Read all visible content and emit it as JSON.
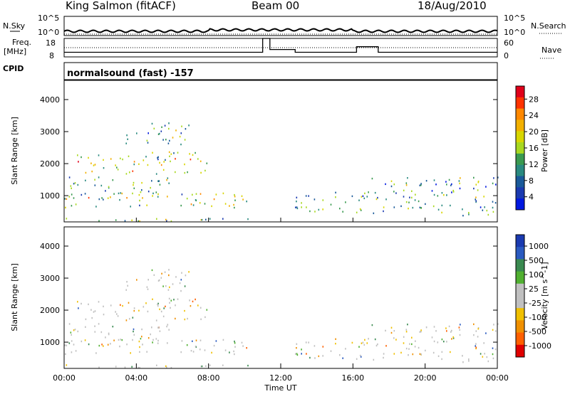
{
  "header": {
    "station": "King Salmon (fitACF)",
    "beam": "Beam 00",
    "date": "18/Aug/2010",
    "program": "normalsound (fast) -157"
  },
  "panels": {
    "nsky_label": "N.Sky",
    "nsearch_label": "N.Search",
    "noise_ticks": [
      "10^5",
      "10^0"
    ],
    "freq_label_1": "Freq.",
    "freq_label_2": "[MHz]",
    "freq_ticks": [
      "18",
      "8"
    ],
    "nave_label": "Nave",
    "nave_ticks": [
      "60",
      "0"
    ],
    "cpid_label": "CPID"
  },
  "power": {
    "ylabel": "Slant Range [km]",
    "cbar_label": "Power [dB]",
    "cbar_ticks": [
      "28",
      "24",
      "20",
      "16",
      "12",
      "8",
      "4"
    ],
    "cbar_colors": [
      "#e0001a",
      "#ff3300",
      "#ff8800",
      "#f2b000",
      "#d8d600",
      "#a8d820",
      "#3a9a50",
      "#2a8a80",
      "#1a5a9a",
      "#1a3ab0",
      "#0018e0"
    ]
  },
  "velocity": {
    "ylabel": "Slant Range [km]",
    "cbar_label": "Velocity [m s^-1]",
    "cbar_ticks": [
      "1000",
      "500",
      "100",
      "25",
      "-25",
      "-100",
      "-500",
      "-1000"
    ],
    "cbar_colors": [
      "#1a3ab0",
      "#2a5ac0",
      "#3a8a50",
      "#50b030",
      "#c0c0c0",
      "#c0c0c0",
      "#f0c000",
      "#f09000",
      "#ff6000",
      "#e00000"
    ]
  },
  "axes": {
    "y_ticks": [
      "4000",
      "3000",
      "2000",
      "1000"
    ],
    "x_ticks": [
      "00:00",
      "04:00",
      "08:00",
      "12:00",
      "16:00",
      "20:00",
      "00:00"
    ],
    "xlabel": "Time UT"
  },
  "chart_data": {
    "type": "heatmap",
    "title": "King Salmon (fitACF)",
    "x_range_hours": [
      0,
      24
    ],
    "y_range_km": [
      180,
      4600
    ],
    "freq_steps": [
      {
        "x": [
          0,
          11
        ],
        "freq_mhz": 10.5
      },
      {
        "x": [
          11,
          11.4
        ],
        "freq_mhz": 18
      },
      {
        "x": [
          11.4,
          12.8
        ],
        "freq_mhz": 12
      },
      {
        "x": [
          12.8,
          16.2
        ],
        "freq_mhz": 10.5
      },
      {
        "x": [
          16.2,
          17.4
        ],
        "freq_mhz": 13.5
      },
      {
        "x": [
          17.4,
          24
        ],
        "freq_mhz": 10.5
      }
    ],
    "scatter_bands": [
      {
        "x": [
          0.1,
          11.0
        ],
        "y": [
          180,
          320
        ],
        "level": 0.45
      },
      {
        "x": [
          0.0,
          10.2
        ],
        "y": [
          650,
          1100
        ],
        "level": 0.5
      },
      {
        "x": [
          0.2,
          6.0
        ],
        "y": [
          950,
          1600
        ],
        "level": 0.35
      },
      {
        "x": [
          0.5,
          8.0
        ],
        "y": [
          1700,
          2400
        ],
        "level": 0.55
      },
      {
        "x": [
          3.3,
          7.0
        ],
        "y": [
          2600,
          3300
        ],
        "level": 0.3
      },
      {
        "x": [
          12.7,
          17.0
        ],
        "y": [
          500,
          1200
        ],
        "level": 0.3
      },
      {
        "x": [
          17.0,
          24.0
        ],
        "y": [
          400,
          1600
        ],
        "level": 0.35
      }
    ]
  }
}
